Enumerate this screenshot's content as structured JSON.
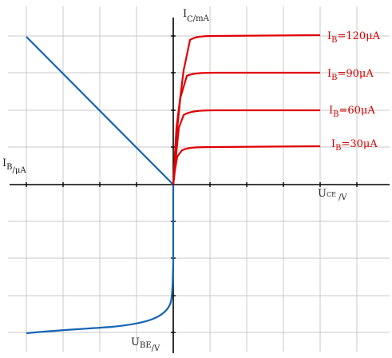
{
  "colors": {
    "output_curves": "#e00000",
    "input_curves": "#1464b4",
    "axes": "#000000",
    "grid": "#c8c8c8"
  },
  "axes": {
    "ic": {
      "main": "I",
      "sub": "C",
      "unit": "/mA"
    },
    "uce": {
      "main": "U",
      "sub": "CE",
      "unit": "/V"
    },
    "ib": {
      "main": "I",
      "sub": "B",
      "unit": "/μA"
    },
    "ube": {
      "main": "U",
      "sub": "BE",
      "unit": "/V"
    }
  },
  "output_labels": [
    {
      "main": "I",
      "sub": "B",
      "value": "=120μA"
    },
    {
      "main": "I",
      "sub": "B",
      "value": "=90μA"
    },
    {
      "main": "I",
      "sub": "B",
      "value": "=60μA"
    },
    {
      "main": "I",
      "sub": "B",
      "value": "=30μA"
    }
  ]
}
